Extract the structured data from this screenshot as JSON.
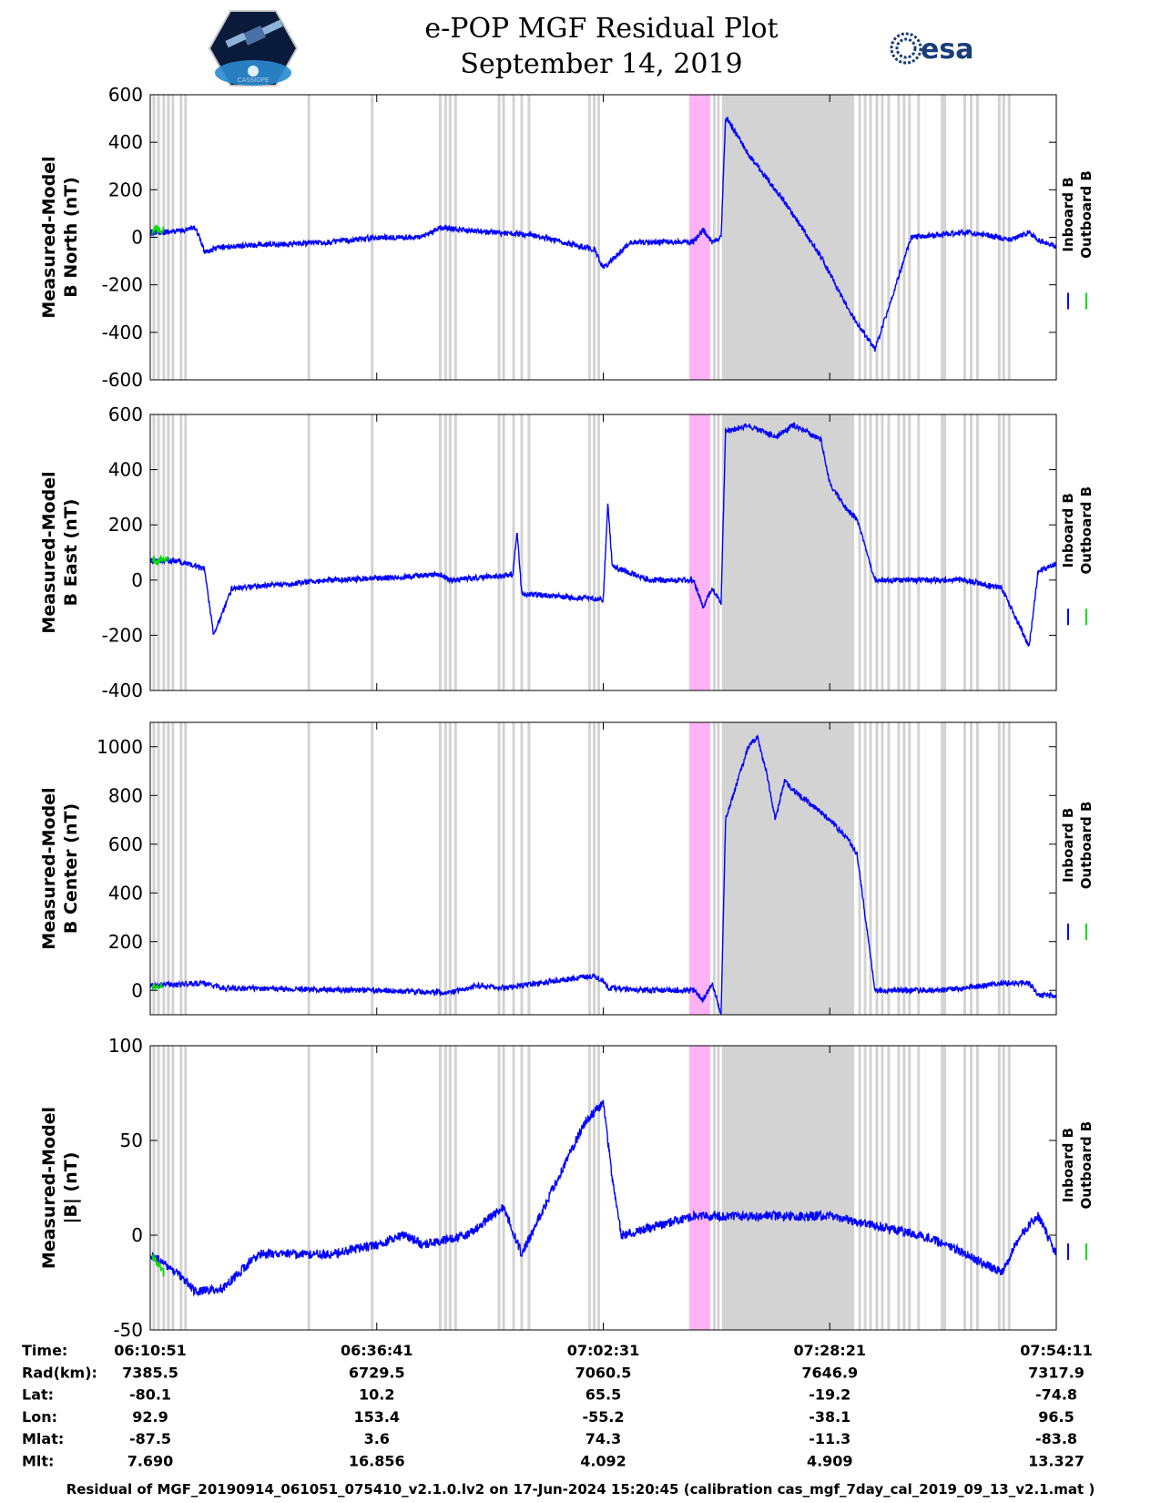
{
  "header": {
    "title_line1": "e-POP MGF Residual Plot",
    "title_line2": "September 14, 2019",
    "left_logo_icon": "cassiope-satellite-logo",
    "left_logo_text": "CASSIOPE",
    "right_logo_icon": "esa-logo",
    "right_logo_text": "esa"
  },
  "footer": {
    "text": "Residual of MGF_20190914_061051_075410_v2.1.0.lv2 on 17-Jun-2024 15:20:45 (calibration cas_mgf_7day_cal_2019_09_13_v2.1.mat )"
  },
  "colors": {
    "inboard": "#0000ff",
    "outboard": "#00dd00",
    "gray_band": "#d3d3d3",
    "pink_band": "#ffb3f5"
  },
  "chart_data": [
    {
      "type": "line",
      "ylabel": [
        "Measured-Model",
        "B North (nT)"
      ],
      "ylim": [
        -600,
        600
      ],
      "yticks": [
        "600",
        "400",
        "200",
        "0",
        "-200",
        "-400",
        "-600"
      ],
      "legend": [
        {
          "name": "Inboard B",
          "color": "#0000ff"
        },
        {
          "name": "Outboard B",
          "color": "#00dd00"
        }
      ],
      "series": [
        {
          "name": "Inboard B",
          "noise": 6,
          "x": [
            0,
            0.03,
            0.05,
            0.06,
            0.08,
            0.2,
            0.25,
            0.3,
            0.32,
            0.38,
            0.42,
            0.49,
            0.5,
            0.53,
            0.6,
            0.61,
            0.62,
            0.63,
            0.635,
            0.64,
            0.66,
            0.7,
            0.74,
            0.77,
            0.78,
            0.8,
            0.84,
            0.9,
            0.92,
            0.95,
            0.97,
            0.98,
            1.0
          ],
          "y": [
            20,
            25,
            40,
            -60,
            -40,
            -20,
            0,
            0,
            40,
            20,
            10,
            -50,
            -130,
            -20,
            -20,
            30,
            -20,
            0,
            500,
            480,
            350,
            150,
            -80,
            -300,
            -360,
            -470,
            0,
            20,
            10,
            -10,
            20,
            -10,
            -40
          ]
        },
        {
          "name": "Outboard B",
          "noise": 8,
          "x": [
            0.002,
            0.006,
            0.01,
            0.015
          ],
          "y": [
            20,
            40,
            30,
            25
          ]
        }
      ]
    },
    {
      "type": "line",
      "ylabel": [
        "Measured-Model",
        "B East (nT)"
      ],
      "ylim": [
        -400,
        600
      ],
      "yticks": [
        "600",
        "400",
        "200",
        "0",
        "-200",
        "-400"
      ],
      "legend": [
        {
          "name": "Inboard B",
          "color": "#0000ff"
        },
        {
          "name": "Outboard B",
          "color": "#00dd00"
        }
      ],
      "series": [
        {
          "name": "Inboard B",
          "noise": 6,
          "x": [
            0,
            0.03,
            0.06,
            0.07,
            0.09,
            0.2,
            0.27,
            0.32,
            0.33,
            0.4,
            0.405,
            0.41,
            0.5,
            0.505,
            0.51,
            0.55,
            0.6,
            0.61,
            0.62,
            0.63,
            0.635,
            0.66,
            0.69,
            0.71,
            0.74,
            0.75,
            0.77,
            0.78,
            0.8,
            0.87,
            0.9,
            0.94,
            0.97,
            0.98,
            1.0
          ],
          "y": [
            70,
            70,
            40,
            -200,
            -30,
            0,
            10,
            20,
            0,
            20,
            180,
            -50,
            -70,
            280,
            50,
            0,
            0,
            -100,
            -30,
            -80,
            540,
            560,
            520,
            560,
            510,
            350,
            250,
            220,
            0,
            0,
            0,
            -30,
            -240,
            30,
            60
          ]
        },
        {
          "name": "Outboard B",
          "noise": 8,
          "x": [
            0.002,
            0.008,
            0.012,
            0.02
          ],
          "y": [
            80,
            60,
            75,
            70
          ]
        }
      ]
    },
    {
      "type": "line",
      "ylabel": [
        "Measured-Model",
        "B Center (nT)"
      ],
      "ylim": [
        -100,
        1100
      ],
      "yticks": [
        "1000",
        "800",
        "600",
        "400",
        "200",
        "0"
      ],
      "legend": [
        {
          "name": "Inboard B",
          "color": "#0000ff"
        },
        {
          "name": "Outboard B",
          "color": "#00dd00"
        }
      ],
      "series": [
        {
          "name": "Inboard B",
          "noise": 6,
          "x": [
            0,
            0.06,
            0.08,
            0.25,
            0.33,
            0.36,
            0.39,
            0.41,
            0.49,
            0.5,
            0.505,
            0.55,
            0.6,
            0.61,
            0.62,
            0.63,
            0.635,
            0.66,
            0.67,
            0.68,
            0.69,
            0.7,
            0.71,
            0.75,
            0.77,
            0.78,
            0.8,
            0.87,
            0.9,
            0.94,
            0.97,
            0.98,
            1.0
          ],
          "y": [
            20,
            30,
            10,
            0,
            -10,
            20,
            10,
            20,
            60,
            40,
            10,
            0,
            0,
            -40,
            30,
            -100,
            700,
            1000,
            1040,
            900,
            700,
            860,
            820,
            700,
            620,
            560,
            0,
            0,
            10,
            30,
            30,
            -20,
            -20
          ]
        },
        {
          "name": "Outboard B",
          "noise": 6,
          "x": [
            0.002,
            0.008,
            0.014
          ],
          "y": [
            10,
            15,
            20
          ]
        }
      ]
    },
    {
      "type": "line",
      "ylabel": [
        "Measured-Model",
        "|B| (nT)"
      ],
      "ylim": [
        -50,
        100
      ],
      "yticks": [
        "100",
        "50",
        "0",
        "-50"
      ],
      "legend": [
        {
          "name": "Inboard B",
          "color": "#0000ff"
        },
        {
          "name": "Outboard B",
          "color": "#00dd00"
        }
      ],
      "series": [
        {
          "name": "Inboard B",
          "noise": 10,
          "x": [
            0,
            0.03,
            0.05,
            0.08,
            0.12,
            0.2,
            0.25,
            0.28,
            0.3,
            0.35,
            0.39,
            0.41,
            0.44,
            0.48,
            0.5,
            0.51,
            0.52,
            0.6,
            0.7,
            0.75,
            0.8,
            0.85,
            0.88,
            0.9,
            0.92,
            0.94,
            0.96,
            0.98,
            1.0
          ],
          "y": [
            -10,
            -20,
            -30,
            -28,
            -10,
            -10,
            -5,
            0,
            -5,
            0,
            15,
            -10,
            20,
            60,
            70,
            30,
            0,
            10,
            10,
            10,
            5,
            0,
            -5,
            -10,
            -15,
            -20,
            0,
            10,
            -10
          ]
        },
        {
          "name": "Outboard B",
          "noise": 10,
          "x": [
            0.002,
            0.008,
            0.015
          ],
          "y": [
            -10,
            -15,
            -20
          ]
        }
      ]
    }
  ],
  "bands": {
    "gray_wide": [
      [
        0.631,
        0.777
      ]
    ],
    "pink": [
      [
        0.595,
        0.618
      ]
    ],
    "gray_thin": [
      0.004,
      0.009,
      0.015,
      0.02,
      0.025,
      0.034,
      0.039,
      0.175,
      0.245,
      0.32,
      0.326,
      0.331,
      0.337,
      0.385,
      0.39,
      0.401,
      0.41,
      0.418,
      0.485,
      0.49,
      0.495,
      0.6225,
      0.627,
      0.783,
      0.789,
      0.795,
      0.802,
      0.808,
      0.815,
      0.826,
      0.832,
      0.838,
      0.848,
      0.874,
      0.877,
      0.899,
      0.906,
      0.913,
      0.937,
      0.942,
      0.948
    ]
  },
  "ephemeris": {
    "row_labels": [
      "Time:",
      "Rad(km):",
      "Lat:",
      "Lon:",
      "Mlat:",
      "Mlt:"
    ],
    "columns": [
      [
        "06:10:51",
        "7385.5",
        "-80.1",
        "92.9",
        "-87.5",
        "7.690"
      ],
      [
        "06:36:41",
        "6729.5",
        "10.2",
        "153.4",
        "3.6",
        "16.856"
      ],
      [
        "07:02:31",
        "7060.5",
        "65.5",
        "-55.2",
        "74.3",
        "4.092"
      ],
      [
        "07:28:21",
        "7646.9",
        "-19.2",
        "-38.1",
        "-11.3",
        "4.909"
      ],
      [
        "07:54:11",
        "7317.9",
        "-74.8",
        "96.5",
        "-83.8",
        "13.327"
      ]
    ]
  }
}
